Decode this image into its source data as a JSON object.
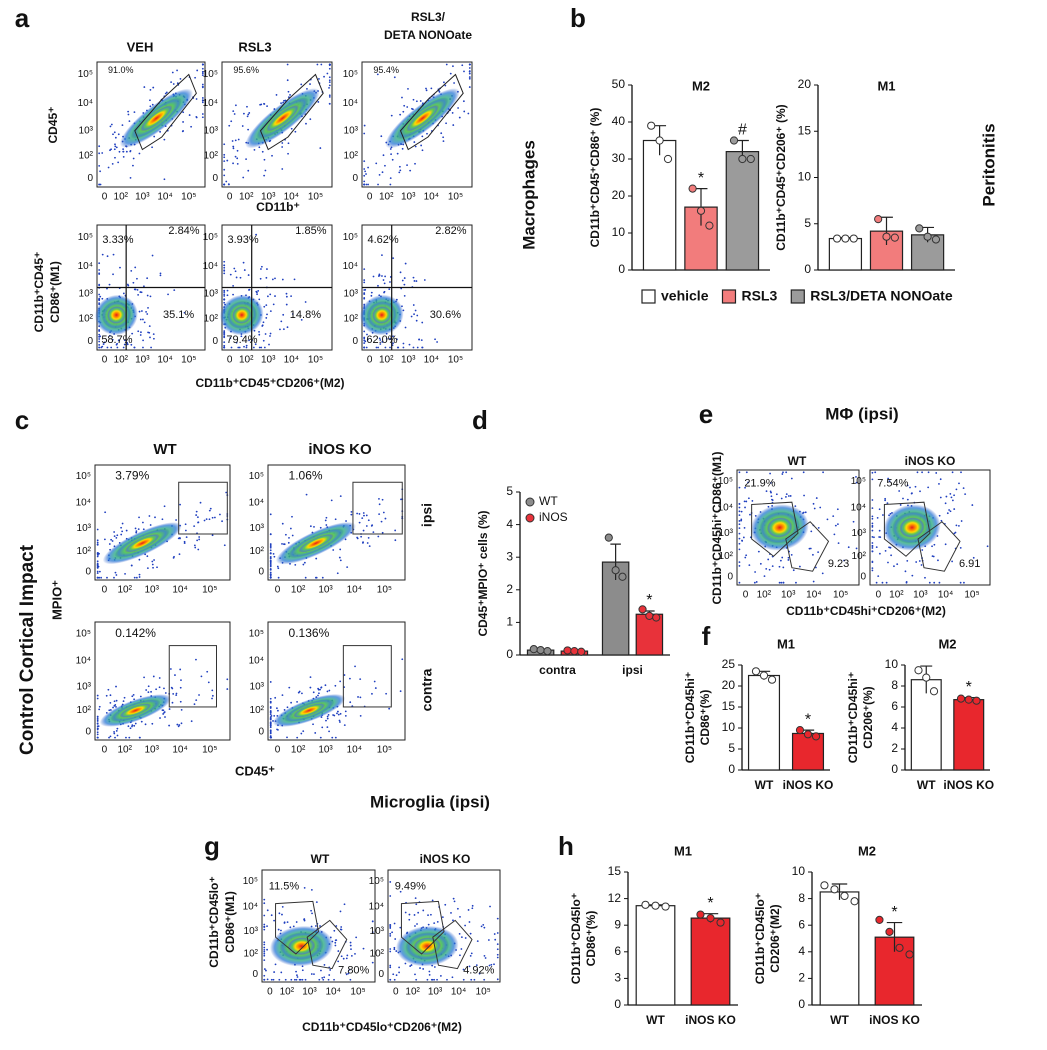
{
  "panel_letters": [
    "a",
    "b",
    "c",
    "d",
    "e",
    "f",
    "g",
    "h"
  ],
  "flow_ticks": [
    "0",
    "10²",
    "10³",
    "10⁴",
    "10⁵"
  ],
  "text": {
    "a_col1": "VEH",
    "a_col2": "RSL3",
    "a_col3a": "RSL3/",
    "a_col3b": "DETA NONOate",
    "a_ylab_top": "CD45⁺",
    "a_xlab_top": "CD11b⁺",
    "a_ylab_bot1": "CD11b⁺CD45⁺",
    "a_ylab_bot2": "CD86⁺(M1)",
    "a_xlab_bot": "CD11b⁺CD45⁺CD206⁺(M2)",
    "macrophages": "Macrophages",
    "peritonitis": "Peritonitis",
    "c_col1": "WT",
    "c_col2": "iNOS KO",
    "ipsi": "ipsi",
    "contra": "contra",
    "c_ylab": "MPIO⁺",
    "c_xlab": "CD45⁺",
    "cci": "Control Cortical Impact",
    "e_title": "MΦ (ipsi)",
    "e_col1": "WT",
    "e_col2": "iNOS KO",
    "e_ylab": "CD11b⁺CD45hi⁺CD86⁺(M1)",
    "e_xlab": "CD11b⁺CD45hi⁺CD206⁺(M2)",
    "microglia": "Microglia (ipsi)",
    "g_col1": "WT",
    "g_col2": "iNOS KO",
    "g_ylab1": "CD11b⁺CD45lo⁺",
    "g_ylab2": "CD86⁺(M1)",
    "g_xlab": "CD11b⁺CD45lo⁺CD206⁺(M2)"
  },
  "flow_plots": [
    {
      "labels": [
        "91.0%"
      ]
    },
    {
      "labels": [
        "95.6%"
      ]
    },
    {
      "labels": [
        "95.4%"
      ]
    },
    {
      "labels": [
        "3.33%",
        "2.84%",
        "58.7%",
        "35.1%"
      ]
    },
    {
      "labels": [
        "3.93%",
        "1.85%",
        "79.4%",
        "14.8%"
      ]
    },
    {
      "labels": [
        "4.62%",
        "2.82%",
        "62.0%",
        "30.6%"
      ]
    },
    {
      "labels": [
        "3.79%"
      ]
    },
    {
      "labels": [
        "1.06%"
      ]
    },
    {
      "labels": [
        "0.142%"
      ]
    },
    {
      "labels": [
        "0.136%"
      ]
    },
    {
      "labels": [
        "21.9%",
        "9.23"
      ]
    },
    {
      "labels": [
        "7.54%",
        "6.91"
      ]
    },
    {
      "labels": [
        "11.5%",
        "7.80%"
      ]
    },
    {
      "labels": [
        "9.49%",
        "4.92%"
      ]
    }
  ],
  "chart_data": [
    {
      "type": "bar",
      "title": "M2",
      "ylabel": [
        "CD11b⁺CD45⁺CD86⁺ (%)"
      ],
      "ylim": [
        0,
        50
      ],
      "yticks": [
        0,
        10,
        20,
        30,
        40,
        50
      ],
      "legend": "below",
      "series": [
        {
          "name": "vehicle",
          "color": "#ffffff",
          "values": [
            35
          ],
          "errors": [
            4
          ],
          "points": [
            [
              39,
              35,
              30
            ]
          ],
          "annotations": [
            null
          ]
        },
        {
          "name": "RSL3",
          "color": "#f27c7c",
          "values": [
            17
          ],
          "errors": [
            5
          ],
          "points": [
            [
              22,
              16,
              12
            ]
          ],
          "annotations": [
            "*"
          ]
        },
        {
          "name": "RSL3/DETA NONOate",
          "color": "#9b9b9b",
          "values": [
            32
          ],
          "errors": [
            3
          ],
          "points": [
            [
              35,
              30,
              30
            ]
          ],
          "annotations": [
            "#"
          ]
        }
      ]
    },
    {
      "type": "bar",
      "title": "M1",
      "ylabel": [
        "CD11b⁺CD45⁺CD206⁺ (%)"
      ],
      "ylim": [
        0,
        20
      ],
      "yticks": [
        0,
        5,
        10,
        15,
        20
      ],
      "series": [
        {
          "color": "#ffffff",
          "values": [
            3.4
          ],
          "errors": [
            0.1
          ],
          "points": [
            [
              3.4,
              3.4,
              3.4
            ]
          ]
        },
        {
          "color": "#f27c7c",
          "values": [
            4.2
          ],
          "errors": [
            1.5
          ],
          "points": [
            [
              5.5,
              3.6,
              3.5
            ]
          ]
        },
        {
          "color": "#9b9b9b",
          "values": [
            3.8
          ],
          "errors": [
            0.8
          ],
          "points": [
            [
              4.5,
              3.6,
              3.3
            ]
          ]
        }
      ]
    },
    {
      "type": "bar",
      "ylabel": [
        "CD45⁺MPIO⁺ cells (%)"
      ],
      "ylim": [
        0,
        5
      ],
      "yticks": [
        0,
        1,
        2,
        3,
        4,
        5
      ],
      "legend": "top-left",
      "categories": [
        "contra",
        "ipsi"
      ],
      "series": [
        {
          "name": "WT",
          "color": "#8c8c8c",
          "values": [
            0.15,
            2.85
          ],
          "errors": [
            0.02,
            0.55
          ],
          "points": [
            [
              0.18,
              0.15,
              0.12
            ],
            [
              3.6,
              2.6,
              2.4
            ]
          ],
          "annotations": [
            null,
            null
          ]
        },
        {
          "name": "iNOS",
          "color": "#e8323a",
          "values": [
            0.12,
            1.25
          ],
          "errors": [
            0.02,
            0.1
          ],
          "points": [
            [
              0.14,
              0.12,
              0.1
            ],
            [
              1.4,
              1.2,
              1.15
            ]
          ],
          "annotations": [
            null,
            "*"
          ]
        }
      ]
    },
    {
      "type": "bar",
      "title": "M1",
      "ylabel": [
        "CD11b⁺CD45hi⁺",
        "CD86⁺(%)"
      ],
      "ylim": [
        0,
        25
      ],
      "yticks": [
        0,
        5,
        10,
        15,
        20,
        25
      ],
      "categories": [
        "WT",
        "iNOS KO"
      ],
      "series": [
        {
          "colors": [
            "#ffffff",
            "#e8272d"
          ],
          "values": [
            22.5,
            8.7
          ],
          "errors": [
            1,
            0.8
          ],
          "points": [
            [
              23.5,
              22.5,
              21.5
            ],
            [
              9.5,
              8.5,
              8
            ]
          ],
          "annotations": [
            null,
            "*"
          ]
        }
      ]
    },
    {
      "type": "bar",
      "title": "M2",
      "ylabel": [
        "CD11b⁺CD45hi⁺",
        "CD206⁺(%)"
      ],
      "ylim": [
        0,
        10
      ],
      "yticks": [
        0,
        2,
        4,
        6,
        8,
        10
      ],
      "categories": [
        "WT",
        "iNOS KO"
      ],
      "series": [
        {
          "colors": [
            "#ffffff",
            "#e8272d"
          ],
          "values": [
            8.6,
            6.7
          ],
          "errors": [
            1.3,
            0.2
          ],
          "points": [
            [
              9.5,
              8.8,
              7.5
            ],
            [
              6.8,
              6.7,
              6.6
            ]
          ],
          "annotations": [
            null,
            "*"
          ]
        }
      ]
    },
    {
      "type": "bar",
      "title": "M1",
      "ylabel": [
        "CD11b⁺CD45lo⁺",
        "CD86⁺(%)"
      ],
      "ylim": [
        0,
        15
      ],
      "yticks": [
        0,
        3,
        6,
        9,
        12,
        15
      ],
      "categories": [
        "WT",
        "iNOS KO"
      ],
      "series": [
        {
          "colors": [
            "#ffffff",
            "#e8272d"
          ],
          "values": [
            11.2,
            9.8
          ],
          "errors": [
            0.1,
            0.5
          ],
          "points": [
            [
              11.3,
              11.2,
              11.1
            ],
            [
              10.2,
              9.8,
              9.3
            ]
          ],
          "annotations": [
            null,
            "*"
          ]
        }
      ]
    },
    {
      "type": "bar",
      "title": "M2",
      "ylabel": [
        "CD11b⁺CD45lo⁺",
        "CD206⁺(M2)"
      ],
      "ylim": [
        0,
        10
      ],
      "yticks": [
        0,
        2,
        4,
        6,
        8,
        10
      ],
      "categories": [
        "WT",
        "iNOS KO"
      ],
      "series": [
        {
          "colors": [
            "#ffffff",
            "#e8272d"
          ],
          "values": [
            8.5,
            5.1
          ],
          "errors": [
            0.6,
            1.1
          ],
          "points": [
            [
              9,
              8.7,
              8.2,
              7.8
            ],
            [
              6.4,
              5.5,
              4.3,
              3.8
            ]
          ],
          "annotations": [
            null,
            "*"
          ]
        }
      ]
    }
  ]
}
